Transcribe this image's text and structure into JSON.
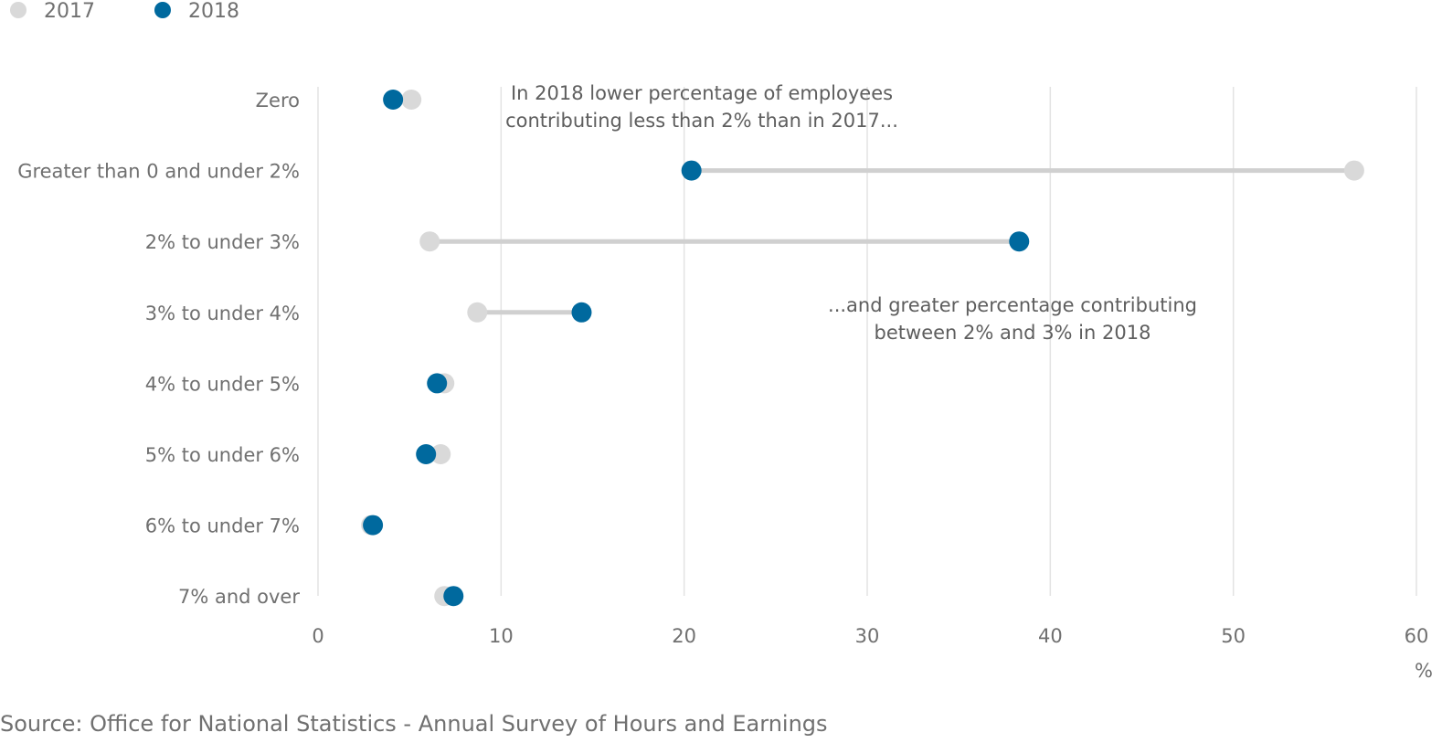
{
  "chart_data": {
    "type": "dumbbell",
    "categories": [
      "Zero",
      "Greater than 0 and under 2%",
      "2% to under 3%",
      "3% to under 4%",
      "4% to under 5%",
      "5% to under 6%",
      "6% to under 7%",
      "7% and over"
    ],
    "series": [
      {
        "name": "2017",
        "color": "#d9d9d9",
        "values": [
          5.1,
          56.6,
          6.1,
          8.7,
          6.9,
          6.7,
          2.9,
          6.9
        ]
      },
      {
        "name": "2018",
        "color": "#00699e",
        "values": [
          4.1,
          20.4,
          38.3,
          14.4,
          6.5,
          5.9,
          3.0,
          7.4
        ]
      }
    ],
    "connector_color": "#d0d0d0",
    "xlim": [
      0,
      60
    ],
    "xticks": [
      0,
      10,
      20,
      30,
      40,
      50,
      60
    ],
    "xlabel": "%",
    "grid": "vertical",
    "legend_position": "top-left",
    "annotations": [
      {
        "lines": [
          "In 2018 lower percentage of employees",
          "contributing less than 2% than in 2017..."
        ]
      },
      {
        "lines": [
          "...and greater percentage contributing",
          "between 2% and 3% in 2018"
        ]
      }
    ],
    "source": "Source: Office for National Statistics - Annual Survey of Hours and Earnings"
  }
}
